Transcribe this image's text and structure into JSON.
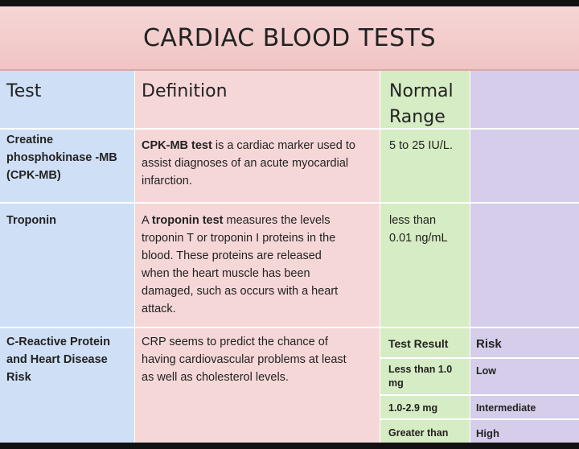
{
  "title": "CARDIAC BLOOD TESTS",
  "headers": {
    "test": "Test",
    "definition": "Definition",
    "range_line1": "Normal",
    "range_line2": "Range"
  },
  "rows": [
    {
      "test_lines": [
        "Creatine",
        "phosphokinase -MB",
        "(CPK-MB)"
      ],
      "def_bold": "CPK-MB test",
      "def_line1_rest": " is a cardiac marker used to",
      "def_lines": [
        "assist diagnoses of an acute myocardial",
        "infarction."
      ],
      "range_lines": [
        "5 to 25 IU/L."
      ]
    },
    {
      "test_lines": [
        "Troponin"
      ],
      "def_line1_pre": "A ",
      "def_bold": "troponin test",
      "def_line1_rest": " measures the levels",
      "def_lines": [
        "troponin T or troponin I proteins in the",
        "blood. These proteins are released",
        "when the heart muscle has been",
        "damaged, such as occurs with a heart",
        "attack."
      ],
      "range_lines": [
        "less than",
        "0.01 ng/mL"
      ]
    },
    {
      "test_lines": [
        "C-Reactive Protein",
        "and Heart Disease",
        "Risk"
      ],
      "def_lines": [
        "CRP seems to predict the chance of",
        "having cardiovascular problems at least",
        "as well as cholesterol levels."
      ]
    }
  ],
  "risk_table": {
    "header_result": "Test Result",
    "header_risk": "Risk",
    "rows": [
      {
        "result_lines": [
          "Less than 1.0",
          "mg"
        ],
        "risk": "Low"
      },
      {
        "result_lines": [
          "1.0-2.9 mg"
        ],
        "risk": "Intermediate"
      },
      {
        "result_lines": [
          "Greater than"
        ],
        "risk": "High"
      }
    ]
  }
}
